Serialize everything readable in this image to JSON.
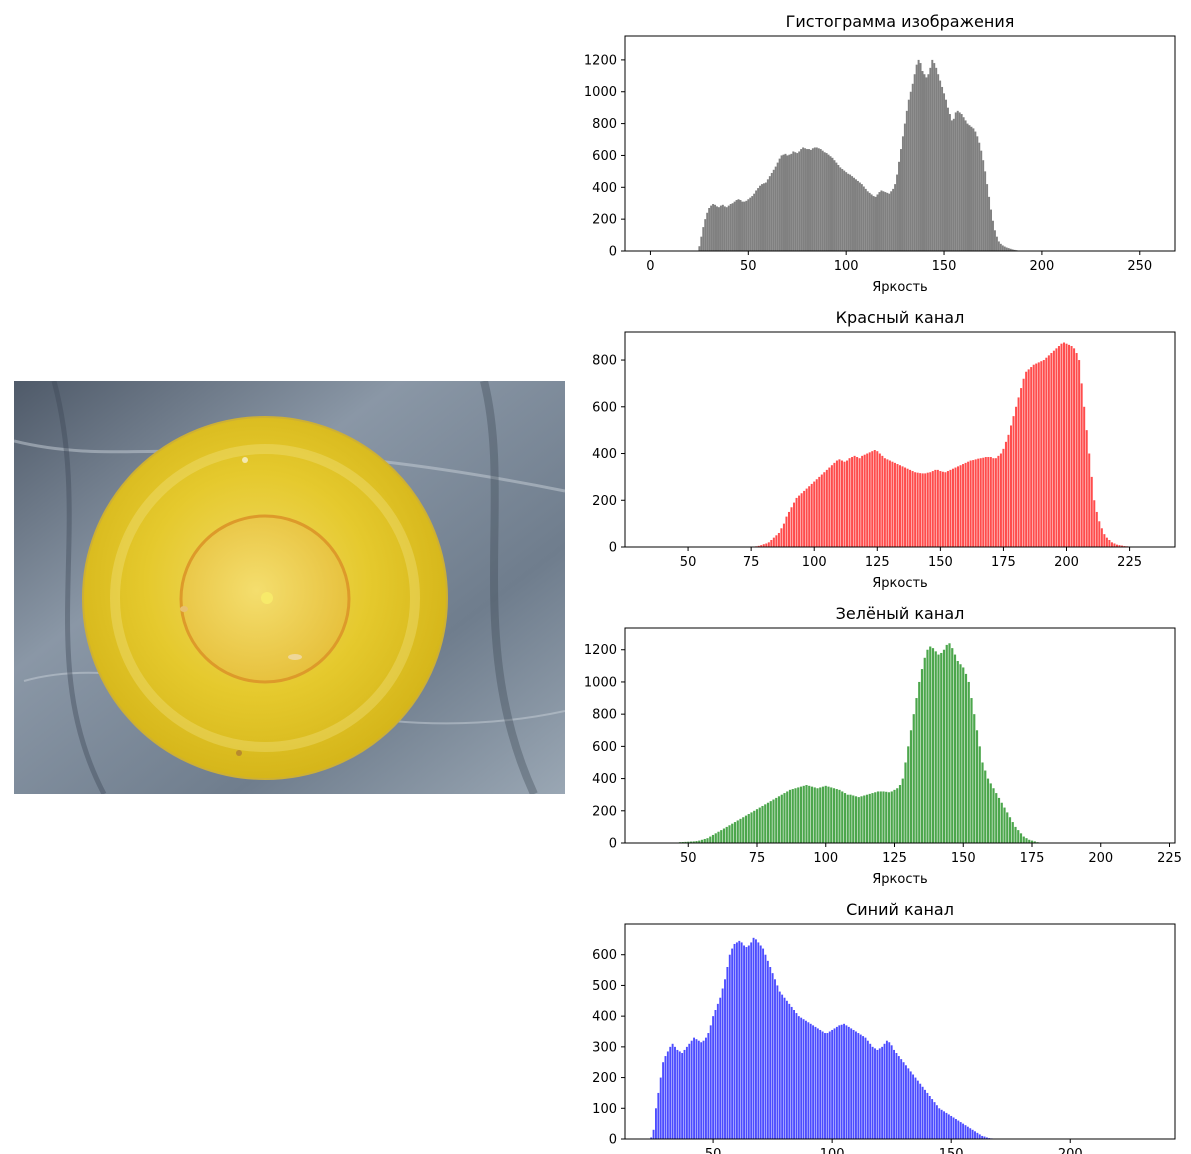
{
  "chart_data": [
    {
      "type": "bar",
      "title": "Гистограмма изображения",
      "xlabel": "Яркость",
      "ylabel": "",
      "color": "#808080",
      "xlim": [
        -13,
        268
      ],
      "ylim": [
        0,
        1350
      ],
      "xticks": [
        0,
        50,
        100,
        150,
        200,
        250
      ],
      "yticks": [
        0,
        200,
        400,
        600,
        800,
        1000,
        1200
      ],
      "x_start": 0,
      "values": [
        0,
        0,
        0,
        0,
        0,
        0,
        0,
        0,
        0,
        0,
        0,
        0,
        0,
        0,
        0,
        0,
        0,
        0,
        0,
        0,
        0,
        0,
        0,
        0,
        0,
        30,
        90,
        150,
        200,
        240,
        270,
        285,
        295,
        290,
        280,
        275,
        285,
        290,
        280,
        275,
        285,
        295,
        300,
        310,
        320,
        325,
        320,
        310,
        310,
        315,
        325,
        335,
        345,
        360,
        380,
        395,
        410,
        420,
        425,
        430,
        450,
        470,
        490,
        510,
        530,
        555,
        580,
        600,
        605,
        610,
        600,
        605,
        610,
        625,
        620,
        615,
        625,
        640,
        650,
        645,
        640,
        640,
        635,
        645,
        650,
        650,
        645,
        640,
        630,
        620,
        615,
        605,
        595,
        585,
        570,
        555,
        540,
        525,
        515,
        505,
        495,
        485,
        480,
        470,
        460,
        450,
        440,
        430,
        420,
        405,
        390,
        375,
        365,
        355,
        345,
        340,
        355,
        370,
        380,
        375,
        370,
        365,
        360,
        375,
        390,
        420,
        480,
        560,
        640,
        720,
        800,
        880,
        950,
        1000,
        1050,
        1110,
        1170,
        1200,
        1180,
        1130,
        1110,
        1090,
        1110,
        1150,
        1200,
        1180,
        1150,
        1110,
        1070,
        1030,
        990,
        950,
        900,
        860,
        820,
        830,
        870,
        880,
        870,
        860,
        840,
        820,
        800,
        790,
        780,
        770,
        750,
        720,
        680,
        630,
        570,
        500,
        420,
        340,
        260,
        190,
        130,
        90,
        60,
        45,
        35,
        28,
        22,
        18,
        14,
        10,
        7,
        5,
        3,
        2,
        1,
        0,
        0,
        0,
        0,
        0,
        0,
        0,
        0,
        0,
        0,
        0,
        0,
        0,
        0,
        0,
        0,
        0,
        0,
        0,
        0,
        0,
        0,
        0,
        0,
        0,
        0,
        0,
        0,
        0,
        0,
        0,
        0,
        0,
        0,
        0,
        0,
        0,
        0,
        0,
        0,
        0,
        0,
        0,
        0,
        0,
        0
      ]
    },
    {
      "type": "bar",
      "title": "Красный канал",
      "xlabel": "Яркость",
      "ylabel": "",
      "color": "#ff0000",
      "xlim": [
        25,
        243
      ],
      "ylim": [
        0,
        920
      ],
      "xticks": [
        50,
        75,
        100,
        125,
        150,
        175,
        200,
        225
      ],
      "yticks": [
        0,
        200,
        400,
        600,
        800
      ],
      "x_start": 35,
      "values": [
        0,
        0,
        0,
        0,
        0,
        0,
        0,
        0,
        0,
        0,
        0,
        0,
        0,
        0,
        0,
        0,
        0,
        0,
        0,
        0,
        0,
        0,
        0,
        0,
        0,
        0,
        0,
        0,
        0,
        0,
        0,
        0,
        0,
        0,
        0,
        0,
        0,
        0,
        0,
        0,
        1,
        2,
        3,
        5,
        8,
        12,
        15,
        20,
        30,
        40,
        50,
        60,
        80,
        100,
        130,
        150,
        170,
        190,
        210,
        220,
        230,
        240,
        250,
        260,
        270,
        280,
        290,
        300,
        310,
        320,
        330,
        340,
        350,
        360,
        370,
        375,
        370,
        365,
        370,
        380,
        385,
        390,
        385,
        380,
        390,
        395,
        400,
        405,
        410,
        415,
        410,
        400,
        390,
        380,
        375,
        370,
        365,
        360,
        355,
        350,
        345,
        340,
        335,
        330,
        325,
        320,
        318,
        316,
        315,
        315,
        318,
        320,
        325,
        330,
        330,
        325,
        322,
        320,
        325,
        330,
        335,
        340,
        345,
        350,
        355,
        360,
        365,
        370,
        372,
        375,
        378,
        380,
        382,
        385,
        385,
        385,
        380,
        380,
        390,
        400,
        420,
        450,
        480,
        520,
        560,
        600,
        640,
        680,
        720,
        750,
        760,
        770,
        780,
        785,
        790,
        795,
        800,
        810,
        820,
        830,
        840,
        850,
        860,
        870,
        875,
        870,
        865,
        860,
        850,
        830,
        800,
        700,
        600,
        500,
        400,
        300,
        200,
        150,
        110,
        80,
        55,
        40,
        30,
        20,
        15,
        10,
        8,
        6,
        4,
        3,
        2,
        1,
        0,
        0,
        0,
        0,
        0,
        0,
        0,
        0,
        0,
        0,
        0,
        0,
        0,
        0,
        0,
        0,
        0,
        0,
        0,
        0,
        0,
        0,
        0,
        0,
        0,
        0,
        0,
        0,
        0,
        0,
        0,
        0,
        0,
        0,
        0,
        0,
        0,
        0,
        0,
        0,
        0
      ]
    },
    {
      "type": "bar",
      "title": "Зелёный канал",
      "xlabel": "Яркость",
      "ylabel": "",
      "color": "#008000",
      "xlim": [
        27,
        227
      ],
      "ylim": [
        0,
        1335
      ],
      "xticks": [
        50,
        75,
        100,
        125,
        150,
        175,
        200,
        225
      ],
      "yticks": [
        0,
        200,
        400,
        600,
        800,
        1000,
        1200
      ],
      "x_start": 37,
      "values": [
        3,
        3,
        3,
        3,
        3,
        3,
        3,
        3,
        3,
        3,
        5,
        6,
        7,
        8,
        9,
        10,
        12,
        15,
        20,
        25,
        30,
        40,
        50,
        60,
        70,
        80,
        90,
        100,
        110,
        120,
        130,
        140,
        150,
        160,
        170,
        180,
        190,
        200,
        210,
        220,
        230,
        240,
        250,
        260,
        270,
        280,
        290,
        300,
        310,
        320,
        330,
        335,
        340,
        345,
        350,
        355,
        360,
        355,
        350,
        345,
        340,
        345,
        350,
        355,
        350,
        345,
        340,
        335,
        330,
        320,
        310,
        300,
        300,
        295,
        290,
        285,
        290,
        295,
        300,
        305,
        310,
        315,
        320,
        320,
        320,
        318,
        315,
        320,
        330,
        340,
        360,
        400,
        500,
        600,
        700,
        800,
        900,
        1000,
        1080,
        1150,
        1200,
        1220,
        1210,
        1190,
        1170,
        1180,
        1200,
        1230,
        1240,
        1210,
        1170,
        1130,
        1110,
        1090,
        1050,
        1000,
        900,
        800,
        700,
        600,
        500,
        450,
        400,
        370,
        340,
        310,
        280,
        250,
        220,
        190,
        160,
        130,
        100,
        80,
        60,
        40,
        30,
        20,
        15,
        10,
        5,
        3,
        2,
        1,
        0,
        0,
        0,
        0,
        0,
        0,
        0,
        0,
        0,
        0,
        0,
        0,
        0,
        0,
        0,
        0,
        0,
        0,
        0,
        0,
        0,
        0,
        0,
        0,
        0,
        0,
        0,
        0,
        0,
        0,
        0,
        0,
        0,
        0,
        0,
        0,
        0,
        0,
        0,
        0,
        0,
        0,
        0,
        0,
        0,
        0,
        0,
        0,
        0,
        0,
        0,
        0,
        0,
        0,
        0,
        0,
        0,
        0,
        0,
        0,
        0,
        0,
        0,
        0,
        0,
        0,
        0,
        0,
        0,
        0,
        0,
        0,
        0,
        0,
        0,
        0,
        0,
        0
      ]
    },
    {
      "type": "bar",
      "title": "Синий канал",
      "xlabel": "",
      "ylabel": "",
      "color": "#0000ff",
      "xlim": [
        13,
        244
      ],
      "ylim": [
        0,
        700
      ],
      "xticks": [
        50,
        100,
        150,
        200
      ],
      "yticks": [
        0,
        100,
        200,
        300,
        400,
        500,
        600
      ],
      "x_start": 22,
      "values": [
        0,
        0,
        5,
        30,
        100,
        150,
        200,
        250,
        270,
        285,
        300,
        310,
        300,
        290,
        285,
        280,
        290,
        300,
        310,
        320,
        330,
        325,
        320,
        315,
        320,
        330,
        345,
        370,
        400,
        420,
        440,
        460,
        490,
        520,
        560,
        600,
        620,
        635,
        640,
        645,
        640,
        630,
        625,
        630,
        640,
        655,
        650,
        640,
        630,
        620,
        600,
        580,
        560,
        540,
        520,
        500,
        480,
        470,
        460,
        450,
        440,
        430,
        420,
        410,
        400,
        395,
        390,
        385,
        380,
        375,
        370,
        365,
        360,
        355,
        350,
        345,
        345,
        350,
        355,
        360,
        365,
        370,
        372,
        375,
        370,
        365,
        360,
        355,
        350,
        345,
        340,
        335,
        330,
        320,
        310,
        300,
        295,
        290,
        295,
        300,
        310,
        320,
        315,
        305,
        290,
        280,
        270,
        260,
        250,
        240,
        230,
        220,
        210,
        200,
        190,
        180,
        170,
        160,
        150,
        140,
        130,
        120,
        110,
        100,
        95,
        90,
        85,
        80,
        75,
        70,
        65,
        60,
        55,
        50,
        45,
        40,
        35,
        30,
        25,
        20,
        15,
        10,
        8,
        5,
        3,
        2,
        1,
        0,
        0,
        0,
        0,
        0,
        0,
        0,
        0,
        0,
        0,
        0,
        0,
        0,
        0,
        0,
        0,
        0,
        0,
        0,
        0,
        0,
        0,
        0,
        0,
        0,
        0,
        0,
        0,
        0,
        0,
        0,
        0,
        0,
        0,
        0,
        0,
        0,
        0,
        0,
        0,
        0,
        0,
        0,
        0,
        0,
        0,
        0,
        0,
        0,
        0,
        0,
        0,
        0,
        0,
        0,
        0,
        0,
        0,
        0,
        0,
        0,
        0,
        0,
        0,
        0,
        0,
        0,
        0,
        0,
        0,
        0,
        0,
        0,
        0,
        0,
        0,
        0,
        0,
        0,
        0,
        0,
        0,
        0,
        0,
        0,
        0,
        0,
        0,
        0,
        0,
        0,
        0,
        0
      ]
    }
  ],
  "photo": {
    "description_icon": "yellow-bowl-photo",
    "bowl_color": "#e2c426",
    "rim_color": "#d7b520",
    "inner_color": "#eccd48",
    "background_color": "#7f8b99"
  }
}
